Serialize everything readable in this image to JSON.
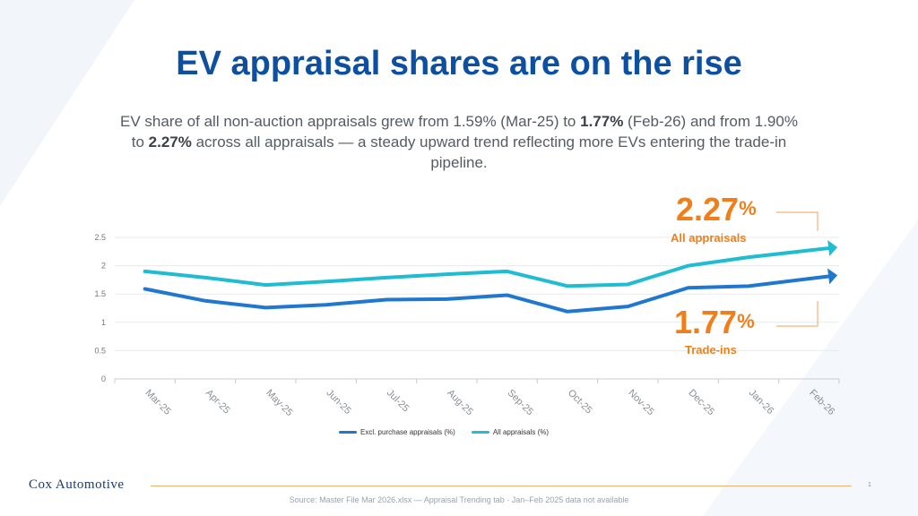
{
  "slide": {
    "title": "EV appraisal shares are on the rise",
    "subtitle_parts": {
      "p1": "EV share of all non-auction appraisals grew from 1.59% (Mar-25) to ",
      "b1": "1.77%",
      "p2": " (Feb-26) and from 1.90% to ",
      "b2": "2.27%",
      "p3": " across all appraisals — a steady upward trend reflecting more EVs entering the trade-in pipeline."
    },
    "callouts": {
      "top_value": "2.27",
      "top_label": "All appraisals",
      "bottom_value": "1.77",
      "bottom_label": "Trade-ins",
      "pct_symbol": "%"
    },
    "logo": "Cox Automotive",
    "source": "Source: Master File Mar 2026.xlsx — Appraisal Trending tab · Jan–Feb 2025 data not available",
    "page_number": "1"
  },
  "colors": {
    "title": "#0d4fa0",
    "series_excl": "#1f77d0",
    "series_all": "#1fbcd2",
    "accent": "#f07f1a"
  },
  "chart_data": {
    "type": "line",
    "categories": [
      "Mar-25",
      "Apr-25",
      "May-25",
      "Jun-25",
      "Jul-25",
      "Aug-25",
      "Sep-25",
      "Oct-25",
      "Nov-25",
      "Dec-25",
      "Jan-26",
      "Feb-26"
    ],
    "series": [
      {
        "name": "Excl. purchase appraisals (%)",
        "color": "#1f77d0",
        "values": [
          1.59,
          1.38,
          1.26,
          1.31,
          1.4,
          1.41,
          1.48,
          1.19,
          1.28,
          1.61,
          1.64,
          1.77
        ]
      },
      {
        "name": "All appraisals (%)",
        "color": "#1fbcd2",
        "values": [
          1.9,
          1.79,
          1.66,
          1.72,
          1.79,
          1.85,
          1.9,
          1.64,
          1.67,
          2.0,
          2.15,
          2.27
        ]
      }
    ],
    "yticks": [
      "0",
      "0.5",
      "1",
      "1.5",
      "2",
      "2.5"
    ],
    "ylim": [
      0,
      2.5
    ],
    "grid": true,
    "legend_position": "bottom"
  }
}
